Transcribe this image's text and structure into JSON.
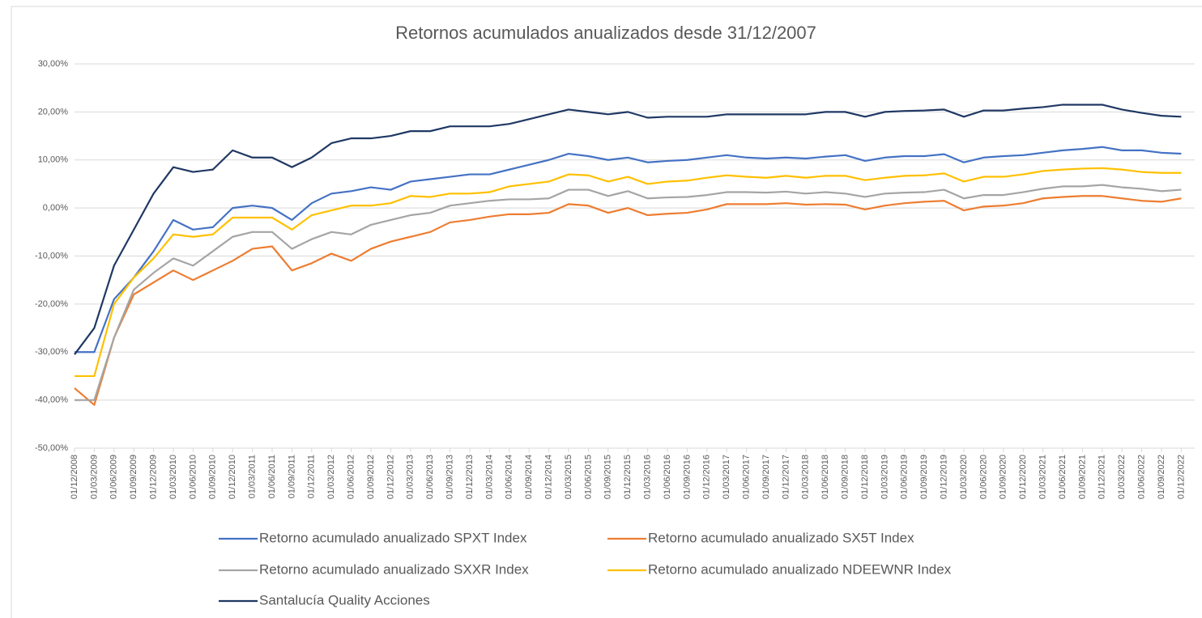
{
  "chart_data": {
    "type": "line",
    "title": "Retornos acumulados anualizados desde 31/12/2007",
    "categories": [
      "01/12/2008",
      "01/03/2009",
      "01/06/2009",
      "01/09/2009",
      "01/12/2009",
      "01/03/2010",
      "01/06/2010",
      "01/09/2010",
      "01/12/2010",
      "01/03/2011",
      "01/06/2011",
      "01/09/2011",
      "01/12/2011",
      "01/03/2012",
      "01/06/2012",
      "01/09/2012",
      "01/12/2012",
      "01/03/2013",
      "01/06/2013",
      "01/09/2013",
      "01/12/2013",
      "01/03/2014",
      "01/06/2014",
      "01/09/2014",
      "01/12/2014",
      "01/03/2015",
      "01/06/2015",
      "01/09/2015",
      "01/12/2015",
      "01/03/2016",
      "01/06/2016",
      "01/09/2016",
      "01/12/2016",
      "01/03/2017",
      "01/06/2017",
      "01/09/2017",
      "01/12/2017",
      "01/03/2018",
      "01/06/2018",
      "01/09/2018",
      "01/12/2018",
      "01/03/2019",
      "01/06/2019",
      "01/09/2019",
      "01/12/2019",
      "01/03/2020",
      "01/06/2020",
      "01/09/2020",
      "01/12/2020",
      "01/03/2021",
      "01/06/2021",
      "01/09/2021",
      "01/12/2021",
      "01/03/2022",
      "01/06/2022",
      "01/09/2022",
      "01/12/2022"
    ],
    "series": [
      {
        "name": "Retorno acumulado anualizado SPXT Index",
        "color": "#4472c4",
        "values": [
          -30,
          -30,
          -19,
          -14.5,
          -9,
          -2.5,
          -4.5,
          -4,
          0,
          0.5,
          0,
          -2.5,
          1,
          3,
          3.5,
          4.3,
          3.8,
          5.5,
          6,
          6.5,
          7,
          7,
          8,
          9,
          10,
          11.3,
          10.8,
          10,
          10.5,
          9.5,
          9.8,
          10,
          10.5,
          11,
          10.5,
          10.3,
          10.5,
          10.3,
          10.7,
          11,
          9.8,
          10.5,
          10.8,
          10.8,
          11.2,
          9.5,
          10.5,
          10.8,
          11,
          11.5,
          12,
          12.3,
          12.7,
          12,
          12,
          11.5,
          11.3
        ]
      },
      {
        "name": "Retorno acumulado anualizado SX5T Index",
        "color": "#ed7d31",
        "values": [
          -37.5,
          -41,
          -27,
          -18,
          -15.5,
          -13,
          -15,
          -13,
          -11,
          -8.5,
          -8,
          -13,
          -11.5,
          -9.5,
          -11,
          -8.5,
          -7,
          -6,
          -5,
          -3,
          -2.5,
          -1.8,
          -1.3,
          -1.3,
          -1,
          0.8,
          0.5,
          -1,
          0,
          -1.5,
          -1.2,
          -1,
          -0.3,
          0.8,
          0.8,
          0.8,
          1,
          0.7,
          0.8,
          0.7,
          -0.3,
          0.5,
          1,
          1.3,
          1.5,
          -0.5,
          0.3,
          0.5,
          1,
          2,
          2.3,
          2.5,
          2.5,
          2,
          1.5,
          1.3,
          2
        ]
      },
      {
        "name": "Retorno acumulado anualizado SXXR Index",
        "color": "#a5a5a5",
        "values": [
          -40,
          -40,
          -27,
          -17,
          -13.5,
          -10.5,
          -12,
          -9,
          -6,
          -5,
          -5,
          -8.5,
          -6.5,
          -5,
          -5.5,
          -3.5,
          -2.5,
          -1.5,
          -1,
          0.5,
          1,
          1.5,
          1.8,
          1.8,
          2,
          3.8,
          3.8,
          2.5,
          3.5,
          2,
          2.2,
          2.3,
          2.7,
          3.3,
          3.3,
          3.2,
          3.4,
          3,
          3.3,
          3,
          2.3,
          3,
          3.2,
          3.3,
          3.8,
          2,
          2.7,
          2.7,
          3.3,
          4,
          4.5,
          4.5,
          4.8,
          4.3,
          4,
          3.5,
          3.8
        ]
      },
      {
        "name": "Retorno acumulado anualizado NDEEWNR Index",
        "color": "#ffc000",
        "values": [
          -35,
          -35,
          -20,
          -14.5,
          -10.5,
          -5.5,
          -6,
          -5.5,
          -2,
          -2,
          -2,
          -4.5,
          -1.5,
          -0.5,
          0.5,
          0.5,
          1,
          2.5,
          2.3,
          3,
          3,
          3.3,
          4.5,
          5,
          5.5,
          7,
          6.8,
          5.5,
          6.5,
          5,
          5.5,
          5.7,
          6.3,
          6.8,
          6.5,
          6.3,
          6.7,
          6.3,
          6.7,
          6.7,
          5.8,
          6.3,
          6.7,
          6.8,
          7.2,
          5.5,
          6.5,
          6.5,
          7,
          7.7,
          8,
          8.2,
          8.3,
          8,
          7.5,
          7.3,
          7.3
        ]
      },
      {
        "name": "Santalucía Quality Acciones",
        "color": "#203864",
        "values": [
          -30.5,
          -25,
          -12,
          -4.5,
          3,
          8.5,
          7.5,
          8,
          12,
          10.5,
          10.5,
          8.5,
          10.5,
          13.5,
          14.5,
          14.5,
          15,
          16,
          16,
          17,
          17,
          17,
          17.5,
          18.5,
          19.5,
          20.5,
          20,
          19.5,
          20,
          18.8,
          19,
          19,
          19,
          19.5,
          19.5,
          19.5,
          19.5,
          19.5,
          20,
          20,
          19,
          20,
          20.2,
          20.3,
          20.5,
          19,
          20.3,
          20.3,
          20.7,
          21,
          21.5,
          21.5,
          21.5,
          20.5,
          19.8,
          19.2,
          19
        ]
      }
    ],
    "ylim": [
      -50,
      30
    ],
    "yticks": [
      {
        "value": -50,
        "label": "-50,00%"
      },
      {
        "value": -40,
        "label": "-40,00%"
      },
      {
        "value": -30,
        "label": "-30,00%"
      },
      {
        "value": -20,
        "label": "-20,00%"
      },
      {
        "value": -10,
        "label": "-10,00%"
      },
      {
        "value": 0,
        "label": "0,00%"
      },
      {
        "value": 10,
        "label": "10,00%"
      },
      {
        "value": 20,
        "label": "20,00%"
      },
      {
        "value": 30,
        "label": "30,00%"
      }
    ],
    "grid": true,
    "legend": "bottom"
  }
}
